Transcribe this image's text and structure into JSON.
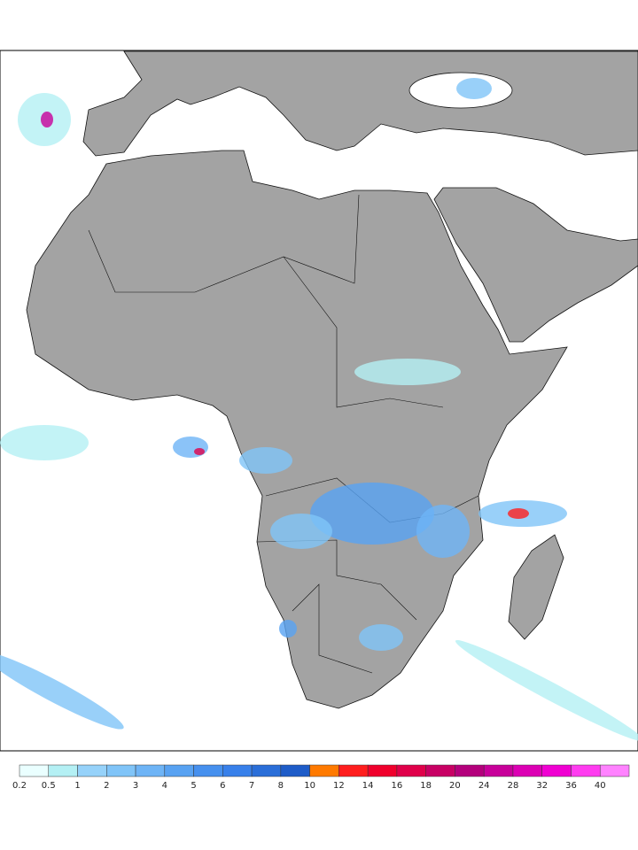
{
  "legend": {
    "levels": [
      0.2,
      0.5,
      1,
      2,
      3,
      4,
      5,
      6,
      7,
      8,
      10,
      12,
      14,
      16,
      18,
      20,
      24,
      28,
      32,
      36,
      40
    ],
    "colors": [
      "#eaffff",
      "#b4f0f4",
      "#96d2fa",
      "#80c4f8",
      "#6eb4f6",
      "#58a2f2",
      "#4690ee",
      "#3880ea",
      "#2a6ed8",
      "#1e5cc8",
      "#ff7a00",
      "#ff1e1e",
      "#f0002c",
      "#e0004a",
      "#c80064",
      "#b4007c",
      "#c8009a",
      "#dc00b4",
      "#f000d2",
      "#ff3cf0",
      "#ff82ff"
    ]
  }
}
